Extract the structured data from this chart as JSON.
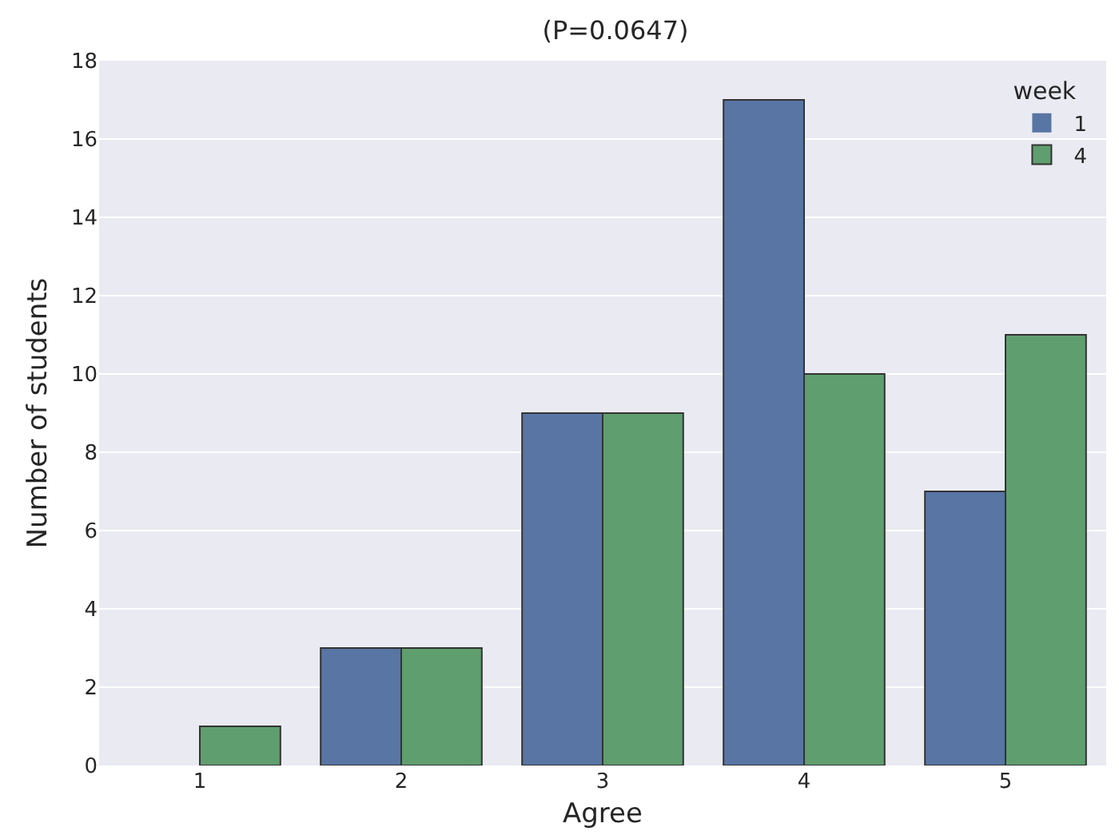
{
  "chart_data": {
    "type": "bar",
    "title": "(P=0.0647)",
    "xlabel": "Agree",
    "ylabel": "Number of students",
    "legend_title": "week",
    "categories": [
      "1",
      "2",
      "3",
      "4",
      "5"
    ],
    "series": [
      {
        "name": "1",
        "color": "#5875a4",
        "values": [
          0,
          3,
          9,
          17,
          7
        ]
      },
      {
        "name": "4",
        "color": "#5f9e6e",
        "values": [
          1,
          3,
          9,
          10,
          11
        ]
      }
    ],
    "ylim": [
      0,
      18
    ],
    "yticks": [
      0,
      2,
      4,
      6,
      8,
      10,
      12,
      14,
      16,
      18
    ],
    "grid": "y",
    "legend": "top right"
  }
}
